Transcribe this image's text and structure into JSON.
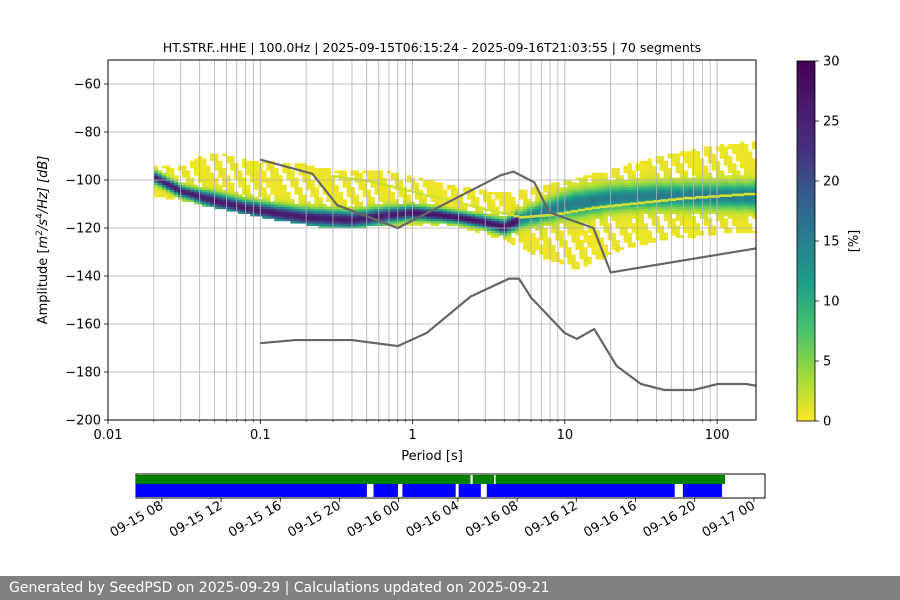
{
  "chart_data": {
    "type": "heatmap",
    "title": "HT.STRF..HHE | 100.0Hz | 2025-09-15T06:15:24 - 2025-09-16T21:03:55 | 70 segments",
    "xlabel": "Period [s]",
    "ylabel_main": "Amplitude [",
    "ylabel_math": "m",
    "ylabel_sup1": "2",
    "ylabel_mid": "/s",
    "ylabel_sup2": "4",
    "ylabel_end": "/Hz] [dB]",
    "xscale": "log",
    "xlim": [
      0.01,
      180
    ],
    "ylim": [
      -200,
      -50
    ],
    "x_ticks": [
      {
        "value": 0.01,
        "label": "0.01"
      },
      {
        "value": 0.1,
        "label": "0.1"
      },
      {
        "value": 1,
        "label": "1"
      },
      {
        "value": 10,
        "label": "10"
      },
      {
        "value": 100,
        "label": "100"
      }
    ],
    "y_ticks": [
      {
        "value": -60,
        "label": "−60"
      },
      {
        "value": -80,
        "label": "−80"
      },
      {
        "value": -100,
        "label": "−100"
      },
      {
        "value": -120,
        "label": "−120"
      },
      {
        "value": -140,
        "label": "−140"
      },
      {
        "value": -160,
        "label": "−160"
      },
      {
        "value": -180,
        "label": "−180"
      },
      {
        "value": -200,
        "label": "−200"
      }
    ],
    "grid": true,
    "colorbar": {
      "label": "[%]",
      "range": [
        0,
        30
      ],
      "ticks": [
        {
          "value": 0,
          "label": "0"
        },
        {
          "value": 5,
          "label": "5"
        },
        {
          "value": 10,
          "label": "10"
        },
        {
          "value": 15,
          "label": "15"
        },
        {
          "value": 20,
          "label": "20"
        },
        {
          "value": 25,
          "label": "25"
        },
        {
          "value": 30,
          "label": "30"
        }
      ]
    },
    "nlnm": [
      [
        0.1,
        -168.0
      ],
      [
        0.17,
        -166.7
      ],
      [
        0.4,
        -166.7
      ],
      [
        0.8,
        -169.2
      ],
      [
        1.24,
        -163.7
      ],
      [
        2.4,
        -148.6
      ],
      [
        4.3,
        -141.1
      ],
      [
        5.0,
        -141.1
      ],
      [
        6.0,
        -149.0
      ],
      [
        10.0,
        -163.8
      ],
      [
        12.0,
        -166.2
      ],
      [
        15.6,
        -162.1
      ],
      [
        21.9,
        -177.5
      ],
      [
        31.6,
        -185.0
      ],
      [
        45.0,
        -187.5
      ],
      [
        70.0,
        -187.5
      ],
      [
        101.0,
        -185.0
      ],
      [
        154.0,
        -185.0
      ],
      [
        180.0,
        -185.7
      ]
    ],
    "nhnm": [
      [
        0.1,
        -91.5
      ],
      [
        0.22,
        -97.4
      ],
      [
        0.32,
        -110.5
      ],
      [
        0.8,
        -120.0
      ],
      [
        3.8,
        -98.0
      ],
      [
        4.6,
        -96.5
      ],
      [
        6.3,
        -101.0
      ],
      [
        7.9,
        -113.5
      ],
      [
        15.4,
        -120.0
      ],
      [
        20.0,
        -138.5
      ],
      [
        180.0,
        -128.5
      ]
    ],
    "psd_mode": [
      [
        0.02,
        -99
      ],
      [
        0.03,
        -105
      ],
      [
        0.05,
        -109
      ],
      [
        0.08,
        -112
      ],
      [
        0.12,
        -114
      ],
      [
        0.2,
        -116
      ],
      [
        0.4,
        -117
      ],
      [
        0.7,
        -115
      ],
      [
        1.0,
        -114
      ],
      [
        1.5,
        -115
      ],
      [
        2.0,
        -116
      ],
      [
        3.0,
        -118
      ],
      [
        4.0,
        -120
      ],
      [
        5.0,
        -117
      ],
      [
        7.0,
        -114
      ],
      [
        10.0,
        -111
      ],
      [
        20.0,
        -108
      ],
      [
        40.0,
        -107
      ],
      [
        80.0,
        -107
      ],
      [
        180.0,
        -107
      ]
    ],
    "psd_upper": [
      [
        0.02,
        -95
      ],
      [
        0.03,
        -96
      ],
      [
        0.04,
        -92
      ],
      [
        0.05,
        -90
      ],
      [
        0.08,
        -93
      ],
      [
        0.12,
        -94
      ],
      [
        0.2,
        -95
      ],
      [
        0.3,
        -97
      ],
      [
        0.6,
        -97
      ],
      [
        1.0,
        -100
      ],
      [
        2.0,
        -104
      ],
      [
        3.0,
        -106
      ],
      [
        5.0,
        -106
      ],
      [
        7.0,
        -104
      ],
      [
        10.0,
        -102
      ],
      [
        20.0,
        -97
      ],
      [
        40.0,
        -92
      ],
      [
        80.0,
        -88
      ],
      [
        180.0,
        -85
      ]
    ],
    "psd_lower": [
      [
        0.02,
        -106
      ],
      [
        0.03,
        -108
      ],
      [
        0.05,
        -111
      ],
      [
        0.1,
        -115
      ],
      [
        0.2,
        -118
      ],
      [
        0.3,
        -120
      ],
      [
        0.5,
        -119
      ],
      [
        1.0,
        -118
      ],
      [
        2.0,
        -119
      ],
      [
        3.0,
        -122
      ],
      [
        4.0,
        -125
      ],
      [
        6.0,
        -130
      ],
      [
        9.0,
        -134
      ],
      [
        12.0,
        -137
      ],
      [
        16.0,
        -133
      ],
      [
        25.0,
        -128
      ],
      [
        50.0,
        -124
      ],
      [
        100.0,
        -122
      ],
      [
        180.0,
        -121
      ]
    ],
    "secondary_band": [
      [
        0.3,
        -99
      ],
      [
        0.5,
        -101
      ],
      [
        0.8,
        -104
      ],
      [
        1.2,
        -107
      ],
      [
        2.0,
        -110
      ],
      [
        3.0,
        -113
      ],
      [
        5.0,
        -116
      ],
      [
        8.0,
        -115
      ],
      [
        15.0,
        -112
      ],
      [
        30.0,
        -110
      ],
      [
        60.0,
        -108
      ],
      [
        180.0,
        -106
      ]
    ],
    "timeline": {
      "range": [
        "2025-09-15 06:15",
        "2025-09-17 00:45"
      ],
      "tick_labels": [
        {
          "hours": 8,
          "label": "09-15 08"
        },
        {
          "hours": 12,
          "label": "09-15 12"
        },
        {
          "hours": 16,
          "label": "09-15 16"
        },
        {
          "hours": 20,
          "label": "09-15 20"
        },
        {
          "hours": 24,
          "label": "09-16 00"
        },
        {
          "hours": 28,
          "label": "09-16 04"
        },
        {
          "hours": 32,
          "label": "09-16 08"
        },
        {
          "hours": 36,
          "label": "09-16 12"
        },
        {
          "hours": 40,
          "label": "09-16 16"
        },
        {
          "hours": 44,
          "label": "09-16 20"
        },
        {
          "hours": 48,
          "label": "09-17 00"
        }
      ],
      "data_available": [
        [
          6.25,
          28.85
        ],
        [
          29.0,
          30.45
        ],
        [
          30.55,
          46.05
        ]
      ],
      "psd_segments": [
        [
          6.25,
          21.85
        ],
        [
          22.3,
          23.95
        ],
        [
          24.25,
          27.85
        ],
        [
          28.05,
          29.55
        ],
        [
          29.95,
          42.65
        ],
        [
          43.2,
          45.85
        ]
      ]
    }
  },
  "footer": {
    "text": "Generated by SeedPSD on 2025-09-29 | Calculations updated on 2025-09-21"
  }
}
